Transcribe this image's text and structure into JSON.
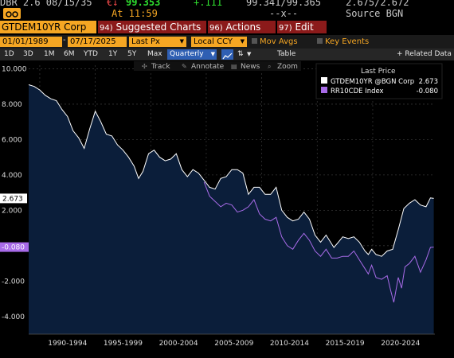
{
  "quote": {
    "ticker_partial": "DBR 2.6 08/15/35",
    "change_marker": "€↓",
    "last_price": "99.353",
    "net_change": "+.111",
    "bid_ask": "99.341/99.365",
    "yield_pair": "2.675/2.672",
    "time": "At 11:59",
    "vol": "--x--",
    "source": "Source BGN"
  },
  "function_bar": {
    "security": "GTDEM10YR Corp",
    "suggested_num": "94)",
    "suggested_label": "Suggested Charts",
    "actions_num": "96)",
    "actions_label": "Actions",
    "edit_num": "97)",
    "edit_label": "Edit"
  },
  "params": {
    "start_date": "01/01/1989",
    "end_date": "07/17/2025",
    "price_type": "Last Px",
    "currency": "Local CCY",
    "mov_avgs": "Mov Avgs",
    "key_events": "Key Events"
  },
  "periods": {
    "items": [
      "1D",
      "3D",
      "1M",
      "6M",
      "YTD",
      "1Y",
      "5Y",
      "Max"
    ],
    "frequency": "Quarterly",
    "table": "Table",
    "related": "+ Related Data"
  },
  "toolbar": {
    "track": "Track",
    "annotate": "Annotate",
    "news": "News",
    "zoom": "Zoom"
  },
  "legend": {
    "header": "Last Price",
    "s1_name": "GTDEM10YR @BGN Corp",
    "s1_value": "2.673",
    "s2_name": "RR10CDE Index",
    "s2_value": "-0.080"
  },
  "colors": {
    "accent_orange": "#f5a623",
    "series1": "#ffffff",
    "series2": "#a86be8",
    "area_fill": "#0b1e3a",
    "background": "#000000"
  },
  "chart_data": {
    "type": "line",
    "y_ticks": [
      "10.000",
      "8.000",
      "6.000",
      "4.000",
      "2.000",
      "",
      "-2.000",
      "-4.000"
    ],
    "ylim": [
      -5.0,
      10.2
    ],
    "x_labels": [
      "1990-1994",
      "1995-1999",
      "2000-2004",
      "2005-2009",
      "2010-2014",
      "2015-2019",
      "2020-2024"
    ],
    "x_range": [
      1989,
      2025.6
    ],
    "last_value_tags": {
      "s1": "2.673",
      "s2": "-0.080"
    },
    "series": [
      {
        "name": "GTDEM10YR @BGN Corp",
        "points": [
          [
            1989.0,
            9.1
          ],
          [
            1989.5,
            9.0
          ],
          [
            1990.0,
            8.8
          ],
          [
            1990.5,
            8.5
          ],
          [
            1991.0,
            8.3
          ],
          [
            1991.5,
            8.2
          ],
          [
            1992.0,
            7.7
          ],
          [
            1992.5,
            7.3
          ],
          [
            1993.0,
            6.5
          ],
          [
            1993.5,
            6.1
          ],
          [
            1994.0,
            5.5
          ],
          [
            1994.5,
            6.6
          ],
          [
            1995.0,
            7.6
          ],
          [
            1995.5,
            7.0
          ],
          [
            1996.0,
            6.3
          ],
          [
            1996.5,
            6.2
          ],
          [
            1997.0,
            5.7
          ],
          [
            1997.5,
            5.4
          ],
          [
            1998.0,
            5.0
          ],
          [
            1998.5,
            4.5
          ],
          [
            1998.9,
            3.8
          ],
          [
            1999.3,
            4.2
          ],
          [
            1999.8,
            5.2
          ],
          [
            2000.3,
            5.4
          ],
          [
            2000.8,
            5.0
          ],
          [
            2001.3,
            4.8
          ],
          [
            2001.8,
            4.9
          ],
          [
            2002.3,
            5.2
          ],
          [
            2002.8,
            4.3
          ],
          [
            2003.3,
            3.9
          ],
          [
            2003.8,
            4.3
          ],
          [
            2004.3,
            4.1
          ],
          [
            2004.8,
            3.7
          ],
          [
            2005.3,
            3.3
          ],
          [
            2005.8,
            3.2
          ],
          [
            2006.3,
            3.8
          ],
          [
            2006.8,
            3.9
          ],
          [
            2007.3,
            4.3
          ],
          [
            2007.8,
            4.3
          ],
          [
            2008.3,
            4.1
          ],
          [
            2008.8,
            2.9
          ],
          [
            2009.3,
            3.3
          ],
          [
            2009.8,
            3.3
          ],
          [
            2010.3,
            2.9
          ],
          [
            2010.8,
            2.9
          ],
          [
            2011.3,
            3.3
          ],
          [
            2011.8,
            2.0
          ],
          [
            2012.3,
            1.6
          ],
          [
            2012.8,
            1.4
          ],
          [
            2013.3,
            1.5
          ],
          [
            2013.8,
            1.9
          ],
          [
            2014.3,
            1.5
          ],
          [
            2014.8,
            0.6
          ],
          [
            2015.3,
            0.2
          ],
          [
            2015.8,
            0.6
          ],
          [
            2016.3,
            0.1
          ],
          [
            2016.5,
            -0.1
          ],
          [
            2016.9,
            0.2
          ],
          [
            2017.3,
            0.5
          ],
          [
            2017.8,
            0.4
          ],
          [
            2018.3,
            0.5
          ],
          [
            2018.8,
            0.2
          ],
          [
            2019.3,
            -0.3
          ],
          [
            2019.6,
            -0.5
          ],
          [
            2019.9,
            -0.2
          ],
          [
            2020.3,
            -0.5
          ],
          [
            2020.8,
            -0.6
          ],
          [
            2021.3,
            -0.3
          ],
          [
            2021.8,
            -0.2
          ],
          [
            2022.3,
            0.9
          ],
          [
            2022.8,
            2.1
          ],
          [
            2023.3,
            2.4
          ],
          [
            2023.8,
            2.6
          ],
          [
            2024.3,
            2.3
          ],
          [
            2024.8,
            2.2
          ],
          [
            2025.2,
            2.7
          ],
          [
            2025.5,
            2.673
          ]
        ]
      },
      {
        "name": "RR10CDE Index",
        "points": [
          [
            2004.8,
            3.6
          ],
          [
            2005.3,
            2.8
          ],
          [
            2005.8,
            2.5
          ],
          [
            2006.3,
            2.2
          ],
          [
            2006.8,
            2.4
          ],
          [
            2007.3,
            2.3
          ],
          [
            2007.8,
            1.9
          ],
          [
            2008.3,
            2.0
          ],
          [
            2008.8,
            2.2
          ],
          [
            2009.3,
            2.6
          ],
          [
            2009.8,
            1.8
          ],
          [
            2010.3,
            1.5
          ],
          [
            2010.8,
            1.4
          ],
          [
            2011.3,
            1.6
          ],
          [
            2011.8,
            0.5
          ],
          [
            2012.3,
            0.0
          ],
          [
            2012.8,
            -0.2
          ],
          [
            2013.3,
            0.3
          ],
          [
            2013.8,
            0.7
          ],
          [
            2014.3,
            0.3
          ],
          [
            2014.8,
            -0.3
          ],
          [
            2015.3,
            -0.6
          ],
          [
            2015.8,
            -0.2
          ],
          [
            2016.3,
            -0.7
          ],
          [
            2016.8,
            -0.7
          ],
          [
            2017.3,
            -0.6
          ],
          [
            2017.8,
            -0.6
          ],
          [
            2018.3,
            -0.3
          ],
          [
            2018.8,
            -0.8
          ],
          [
            2019.3,
            -1.3
          ],
          [
            2019.6,
            -1.6
          ],
          [
            2019.9,
            -1.1
          ],
          [
            2020.3,
            -1.8
          ],
          [
            2020.8,
            -1.9
          ],
          [
            2021.3,
            -1.7
          ],
          [
            2021.6,
            -2.5
          ],
          [
            2021.9,
            -3.2
          ],
          [
            2022.3,
            -1.8
          ],
          [
            2022.6,
            -2.4
          ],
          [
            2022.9,
            -1.2
          ],
          [
            2023.3,
            -1.0
          ],
          [
            2023.8,
            -0.6
          ],
          [
            2024.3,
            -1.5
          ],
          [
            2024.8,
            -0.8
          ],
          [
            2025.2,
            -0.1
          ],
          [
            2025.5,
            -0.08
          ]
        ]
      }
    ]
  }
}
